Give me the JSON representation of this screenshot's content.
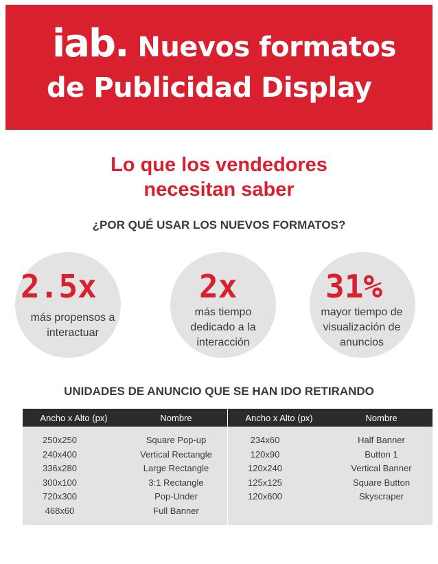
{
  "header": {
    "logo_text": "iab.",
    "title_line1": "Nuevos formatos",
    "title_line2": "de Publicidad Display"
  },
  "subtitle": {
    "line1": "Lo que los vendedores",
    "line2": "necesitan saber"
  },
  "question": "¿POR QUÉ USAR LOS NUEVOS FORMATOS?",
  "stats": [
    {
      "value": "2.5x",
      "text_lines": [
        "más propensos a",
        "interactuar"
      ]
    },
    {
      "value": "2x",
      "text_lines": [
        "más tiempo",
        "dedicado a la",
        "interacción"
      ]
    },
    {
      "value": "31%",
      "text_lines": [
        "mayor tiempo de",
        "visualización de",
        "anuncios"
      ]
    }
  ],
  "units_title": "UNIDADES DE ANUNCIO QUE SE HAN IDO RETIRANDO",
  "tables": [
    {
      "headers": [
        "Ancho x Alto (px)",
        "Nombre"
      ],
      "sizes": [
        "250x250",
        "240x400",
        "336x280",
        "300x100",
        "720x300",
        "468x60"
      ],
      "names": [
        "Square Pop-up",
        "Vertical Rectangle",
        "Large Rectangle",
        "3:1 Rectangle",
        "Pop-Under",
        "Full Banner"
      ]
    },
    {
      "headers": [
        "Ancho x Alto (px)",
        "Nombre"
      ],
      "sizes": [
        "234x60",
        "120x90",
        "120x240",
        "125x125",
        "120x600"
      ],
      "names": [
        "Half Banner",
        "Button 1",
        "Vertical Banner",
        "Square Button",
        "Skyscraper"
      ]
    }
  ],
  "colors": {
    "brand_red": "#d9202f",
    "header_dark": "#2b2b2b",
    "panel_gray": "#e3e3e3"
  }
}
